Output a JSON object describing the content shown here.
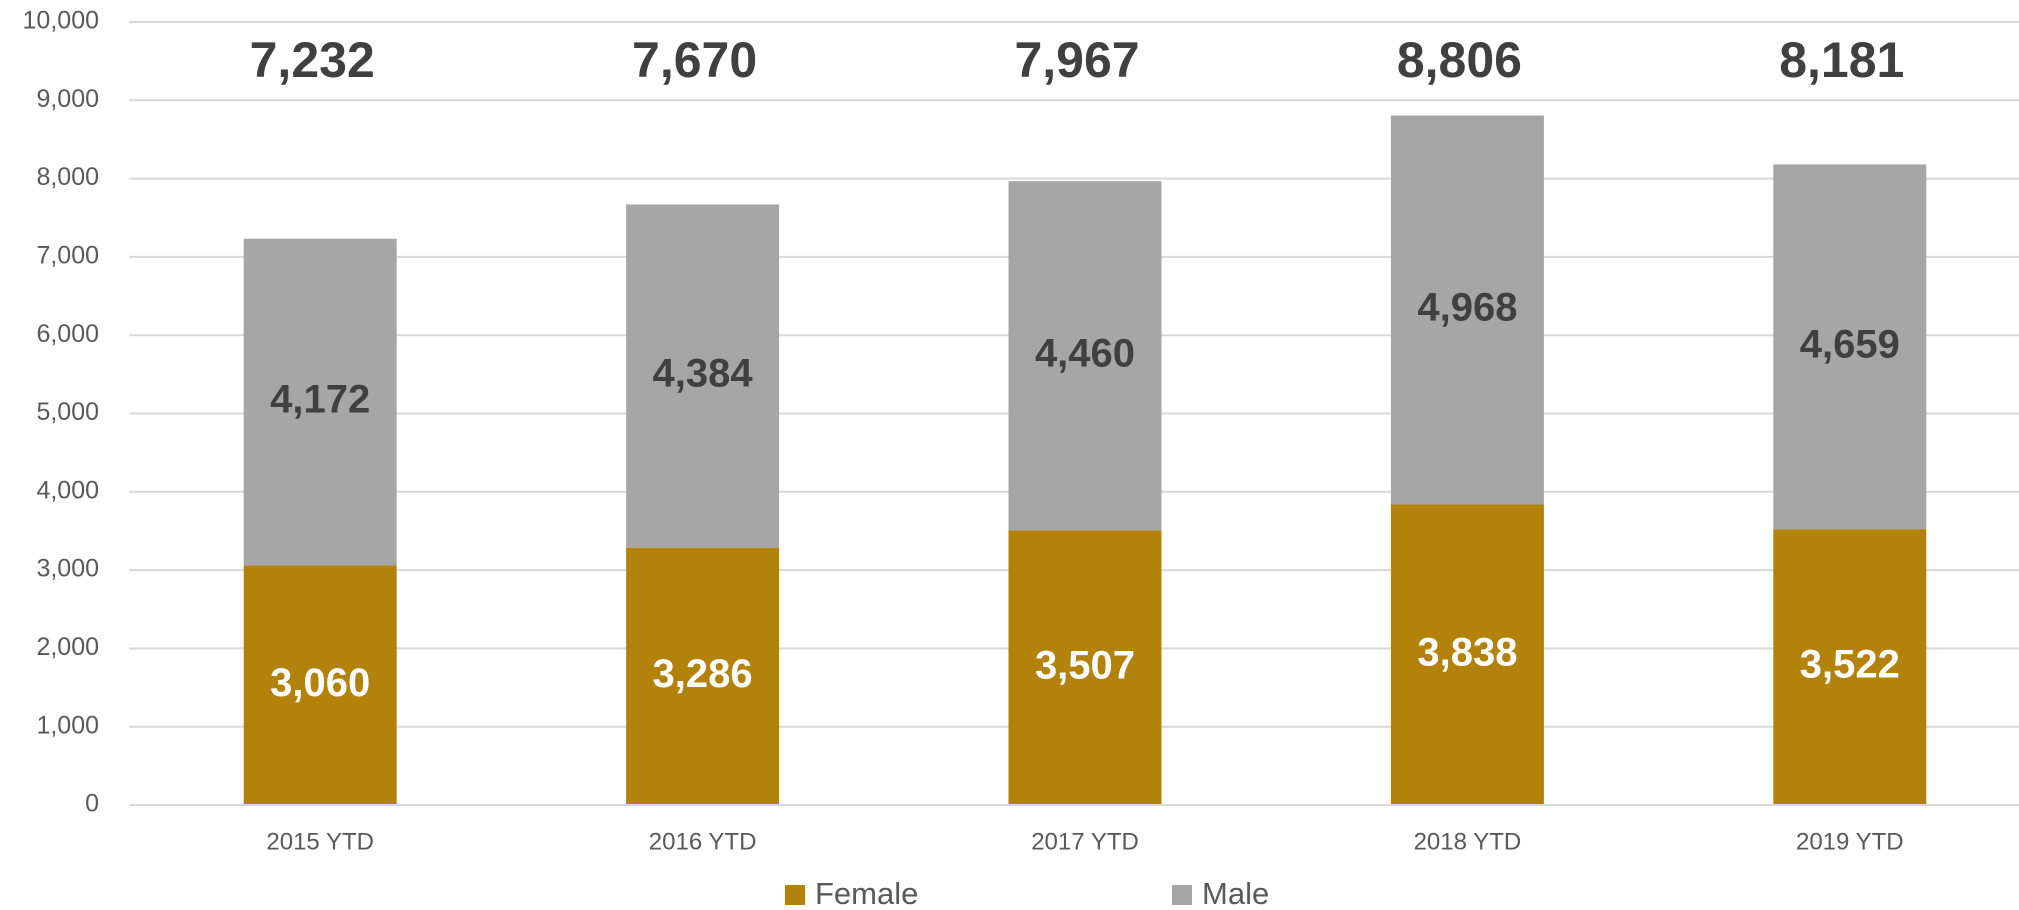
{
  "chart_data": {
    "type": "stacked_bar",
    "categories": [
      "2015 YTD",
      "2016 YTD",
      "2017 YTD",
      "2018 YTD",
      "2019 YTD"
    ],
    "series": [
      {
        "name": "Female",
        "color": "#b3820a",
        "values": [
          3060,
          3286,
          3507,
          3838,
          3522
        ],
        "value_labels": [
          "3,060",
          "3,286",
          "3,507",
          "3,838",
          "3,522"
        ]
      },
      {
        "name": "Male",
        "color": "#a6a6a6",
        "values": [
          4172,
          4384,
          4460,
          4968,
          4659
        ],
        "value_labels": [
          "4,172",
          "4,384",
          "4,460",
          "4,968",
          "4,659"
        ]
      }
    ],
    "totals": [
      7232,
      7670,
      7967,
      8806,
      8181
    ],
    "total_labels": [
      "7,232",
      "7,670",
      "7,967",
      "8,806",
      "8,181"
    ],
    "ylim": [
      0,
      10000
    ],
    "yticks": [
      0,
      {
        "value": 1000,
        "label": "1,000"
      },
      {
        "value": 2000,
        "label": "2,000"
      },
      {
        "value": 3000,
        "label": "3,000"
      },
      {
        "value": 4000,
        "label": "4,000"
      },
      {
        "value": 5000,
        "label": "5,000"
      },
      {
        "value": 6000,
        "label": "6,000"
      },
      {
        "value": 7000,
        "label": "7,000"
      },
      {
        "value": 8000,
        "label": "8,000"
      },
      {
        "value": 9000,
        "label": "9,000"
      },
      {
        "value": 10000,
        "label": "10,000"
      }
    ],
    "grid": true,
    "legend": "bottom"
  }
}
